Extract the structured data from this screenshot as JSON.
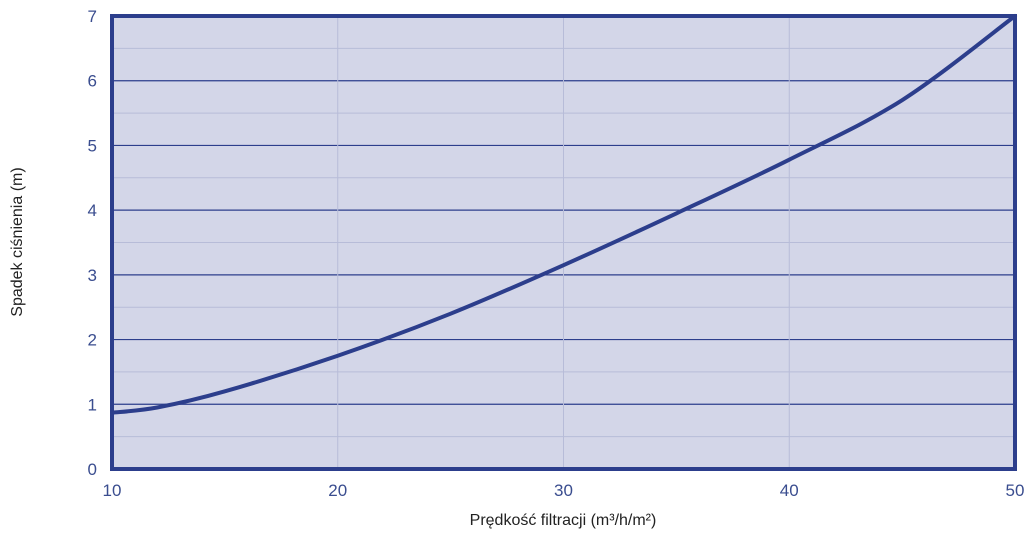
{
  "chart_data": {
    "type": "line",
    "title": "",
    "xlabel": "Prędkość filtracji (m³/h/m²)",
    "ylabel": "Spadek ciśnienia (m)",
    "xlim": [
      10,
      50
    ],
    "ylim": [
      0,
      7
    ],
    "x_ticks": [
      "10",
      "20",
      "30",
      "40",
      "50"
    ],
    "y_ticks": [
      "0",
      "1",
      "2",
      "3",
      "4",
      "5",
      "6",
      "7"
    ],
    "grid": true,
    "series": [
      {
        "x": [
          10,
          12,
          15,
          20,
          25,
          30,
          35,
          40,
          45,
          50
        ],
        "y": [
          0.87,
          0.95,
          1.2,
          1.75,
          2.4,
          3.15,
          3.95,
          4.78,
          5.7,
          7.0
        ]
      }
    ],
    "colors": {
      "plot_background": "#d3d6e8",
      "frame": "#2c3e8c",
      "curve": "#2c3e8c",
      "grid_major": "#2c3e8c",
      "grid_minor": "#b7bcd8",
      "tick_text": "#3a4d8f"
    }
  }
}
